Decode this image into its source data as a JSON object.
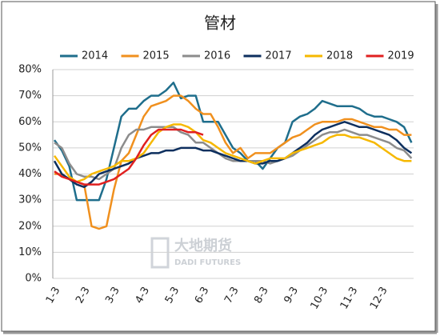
{
  "chart_data": {
    "type": "line",
    "title": "管材",
    "watermark": {
      "name": "大地期货",
      "subtitle": "DADI FUTURES"
    },
    "categories": [
      "1-3",
      null,
      null,
      null,
      "2-3",
      null,
      null,
      null,
      "3-3",
      null,
      null,
      null,
      "4-3",
      null,
      null,
      null,
      "5-3",
      null,
      null,
      null,
      "6-3",
      null,
      null,
      null,
      "7-3",
      null,
      null,
      null,
      "8-3",
      null,
      null,
      null,
      "9-3",
      null,
      null,
      null,
      "10-3",
      null,
      null,
      null,
      "11-3",
      null,
      null,
      null,
      "12-3",
      null,
      null,
      null,
      null
    ],
    "ylim": [
      0,
      80
    ],
    "yticks": [
      {
        "value": 0,
        "label": "0%"
      },
      {
        "value": 10,
        "label": "10%"
      },
      {
        "value": 20,
        "label": "20%"
      },
      {
        "value": 30,
        "label": "30%"
      },
      {
        "value": 40,
        "label": "40%"
      },
      {
        "value": 50,
        "label": "50%"
      },
      {
        "value": 60,
        "label": "60%"
      },
      {
        "value": 70,
        "label": "70%"
      },
      {
        "value": 80,
        "label": "80%"
      }
    ],
    "grid": true,
    "legend": "top",
    "series": [
      {
        "name": "2014",
        "color": "#1f6e8c",
        "values": [
          53,
          49,
          43,
          30,
          30,
          30,
          30,
          38,
          50,
          62,
          65,
          65,
          68,
          70,
          70,
          72,
          75,
          69,
          70,
          70,
          60,
          60,
          60,
          55,
          50,
          48,
          45,
          45,
          42,
          46,
          50,
          52,
          60,
          62,
          63,
          65,
          68,
          67,
          66,
          66,
          66,
          65,
          63,
          62,
          62,
          61,
          60,
          58,
          52
        ]
      },
      {
        "name": "2015",
        "color": "#f0901e",
        "values": [
          40,
          40,
          38,
          37,
          36,
          20,
          19,
          20,
          34,
          45,
          48,
          55,
          62,
          66,
          67,
          68,
          70,
          70,
          68,
          65,
          63,
          63,
          58,
          52,
          48,
          50,
          46,
          48,
          48,
          48,
          50,
          52,
          54,
          55,
          57,
          59,
          60,
          60,
          60,
          61,
          61,
          60,
          59,
          58,
          58,
          57,
          57,
          55,
          55
        ]
      },
      {
        "name": "2016",
        "color": "#8c8c8c",
        "values": [
          52,
          50,
          44,
          40,
          39,
          39,
          38,
          40,
          42,
          50,
          55,
          57,
          57,
          58,
          58,
          58,
          58,
          56,
          55,
          52,
          52,
          50,
          48,
          46,
          45,
          45,
          45,
          45,
          45,
          44,
          45,
          46,
          47,
          49,
          51,
          53,
          55,
          56,
          56,
          57,
          56,
          55,
          55,
          54,
          53,
          52,
          50,
          49,
          46
        ]
      },
      {
        "name": "2017",
        "color": "#0d2f5e",
        "values": [
          45,
          40,
          38,
          36,
          35,
          37,
          40,
          41,
          42,
          43,
          44,
          46,
          47,
          48,
          48,
          49,
          49,
          50,
          50,
          50,
          49,
          49,
          48,
          47,
          46,
          45,
          45,
          44,
          44,
          45,
          45,
          46,
          48,
          50,
          52,
          55,
          57,
          58,
          59,
          60,
          59,
          58,
          58,
          57,
          56,
          55,
          53,
          50,
          48
        ]
      },
      {
        "name": "2018",
        "color": "#f6b800",
        "values": [
          47,
          43,
          39,
          37,
          38,
          40,
          41,
          42,
          43,
          45,
          45,
          46,
          48,
          52,
          56,
          58,
          59,
          59,
          58,
          56,
          53,
          52,
          50,
          48,
          47,
          46,
          45,
          44,
          45,
          46,
          46,
          46,
          48,
          49,
          50,
          51,
          52,
          54,
          55,
          55,
          54,
          54,
          53,
          52,
          50,
          48,
          46,
          45,
          45
        ]
      },
      {
        "name": "2019",
        "color": "#e02020",
        "values": [
          41,
          39,
          38,
          37,
          36,
          36,
          36,
          37,
          38,
          40,
          42,
          46,
          51,
          55,
          57,
          57,
          57,
          57,
          56,
          56,
          55,
          null,
          null,
          null,
          null,
          null,
          null,
          null,
          null,
          null,
          null,
          null,
          null,
          null,
          null,
          null,
          null,
          null,
          null,
          null,
          null,
          null,
          null,
          null,
          null,
          null,
          null,
          null,
          null
        ]
      }
    ]
  }
}
